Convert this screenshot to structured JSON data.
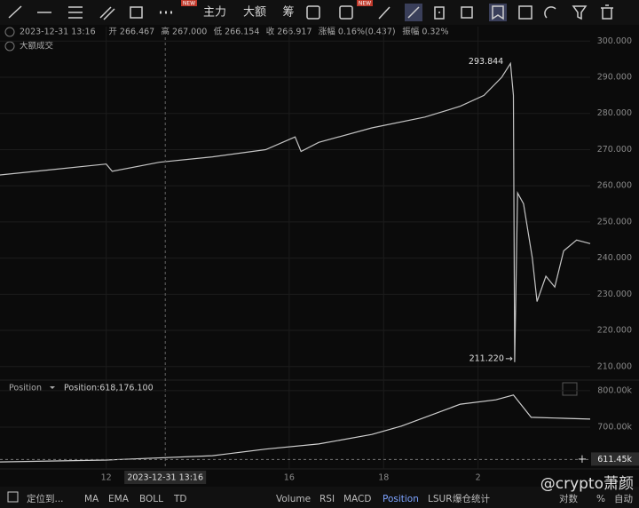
{
  "toolbar": {
    "items": [
      "主力",
      "大额",
      "筹"
    ],
    "badges": [
      "NEW",
      "NEW"
    ]
  },
  "info_items": [
    "2023-12-31 13:16",
    "开 266.467",
    "高 267.000",
    "低 266.154",
    "收 266.917",
    "涨幅 0.16%(0.437)",
    "振幅 0.32%"
  ],
  "indicator_label": "大额成交",
  "chart_data": [
    {
      "type": "line",
      "color": "#c4c4c4",
      "x": [
        0,
        9,
        18,
        19,
        27,
        36,
        45,
        50,
        51,
        54,
        63,
        72,
        78,
        82,
        85,
        86.5,
        87,
        87.2,
        87.7,
        88.7,
        90.2,
        91,
        92.5,
        94,
        95.5,
        97.7,
        100
      ],
      "values": [
        263,
        264.5,
        266,
        264,
        266.5,
        268,
        270,
        273.5,
        269.5,
        272,
        276,
        279,
        282,
        285,
        290,
        293.844,
        285,
        211.22,
        258,
        255,
        240,
        228,
        235,
        232,
        242,
        245,
        244
      ],
      "xlim": [
        0,
        100
      ],
      "ylim": [
        207,
        304
      ],
      "yticks": [
        {
          "value": 210,
          "label": "210.000"
        },
        {
          "value": 220,
          "label": "220.000"
        },
        {
          "value": 230,
          "label": "230.000"
        },
        {
          "value": 240,
          "label": "240.000"
        },
        {
          "value": 250,
          "label": "250.000"
        },
        {
          "value": 260,
          "label": "260.000"
        },
        {
          "value": 270,
          "label": "270.000"
        },
        {
          "value": 280,
          "label": "280.000"
        },
        {
          "value": 290,
          "label": "290.000"
        },
        {
          "value": 300,
          "label": "300.000"
        }
      ],
      "xticks": [
        {
          "value": 18,
          "label": "12"
        },
        {
          "value": 49,
          "label": "16"
        },
        {
          "value": 65,
          "label": "18"
        },
        {
          "value": 81,
          "label": "2"
        }
      ],
      "grid": true,
      "max_label": "293.844",
      "min_label": "211.220",
      "crosshair": {
        "x": 28,
        "label": "2023-12-31 13:16"
      }
    },
    {
      "type": "line",
      "legend": "Position",
      "series_label": "Position:618,176.100",
      "color": "#cfcfcf",
      "x": [
        0,
        18,
        36,
        45,
        54,
        63,
        68,
        78,
        84,
        87,
        90,
        94,
        100
      ],
      "values": [
        605000,
        610000,
        622000,
        640000,
        654000,
        680000,
        703000,
        763000,
        775000,
        788000,
        727000,
        725000,
        722000
      ],
      "xlim": [
        0,
        100
      ],
      "ylim": [
        593000,
        824000
      ],
      "yticks": [
        {
          "value": 700000,
          "label": "700.00k"
        },
        {
          "value": 800000,
          "label": "800.00k"
        }
      ],
      "marker": {
        "value": 611450,
        "label": "611.45k"
      },
      "grid": true
    }
  ],
  "bottom_bar": [
    "定位到...",
    "MA",
    "EMA",
    "BOLL",
    "TD",
    "Volume",
    "RSI",
    "MACD",
    "Position",
    "LSUR",
    "爆仓统计",
    "对数",
    "%",
    "自动"
  ],
  "watermark": "@crypto萧颜"
}
